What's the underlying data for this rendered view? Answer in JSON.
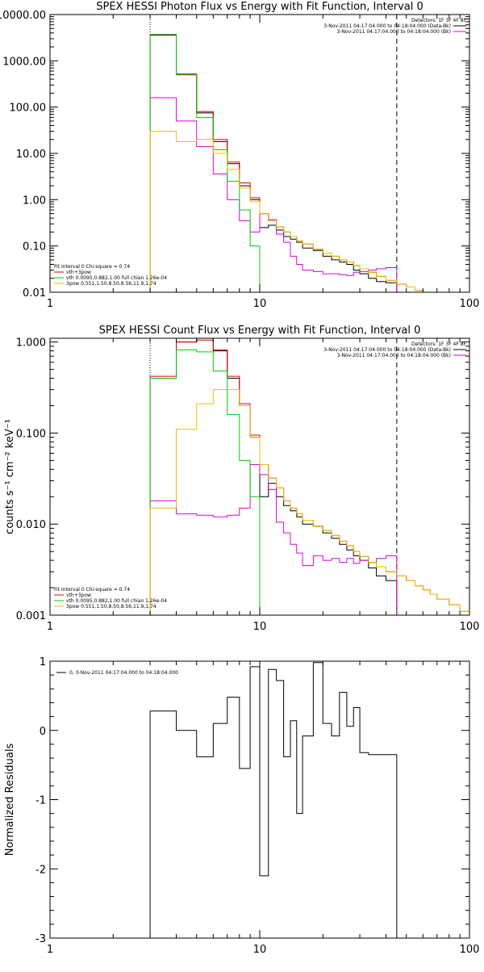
{
  "chart_data": [
    {
      "type": "line",
      "title": "SPEX HESSI Photon Flux vs Energy with Fit Function, Interval 0",
      "xscale": "log",
      "yscale": "log",
      "xlim": [
        1,
        100
      ],
      "ylim": [
        0.01,
        10000
      ],
      "x_tick_labels": [
        "1",
        "10",
        "100"
      ],
      "y_tick_labels": [
        "0.01",
        "0.10",
        "1.00",
        "10.00",
        "100.00",
        "1000.00",
        "10000.00"
      ],
      "vlines": [
        {
          "x": 3,
          "style": "dotted"
        },
        {
          "x": 45,
          "style": "dashed"
        }
      ],
      "legend_top_right": [
        "Detectors: 1F 3F 4F 8F",
        "3-Nov-2011 04:17:04.000 to 04:18:04.000 (Data-Bk)",
        "3-Nov-2011 04:17:04.000 to 04:18:04.000 (Bk)"
      ],
      "legend_bottom_left": [
        "Fit Interval  0    Chi-square = 0.74",
        "vth+3pow",
        "vth 0.0095,0.882,1.00  full chian 1.26e-04",
        "3pow 0.551,1.50,8.50,8.56,11.9,1.74"
      ],
      "edges": [
        3.0,
        4.0,
        5.0,
        6.0,
        7.0,
        8.0,
        9.0,
        10.0,
        11.0,
        12.0,
        13.0,
        14.0,
        15.0,
        16.0,
        18.0,
        20.0,
        22.0,
        24.0,
        26.0,
        28.0,
        30.0,
        33.0,
        36.0,
        40.0,
        45.0
      ],
      "model_edges": [
        3.0,
        4.0,
        5.0,
        6.0,
        7.0,
        8.0,
        9.0,
        10.0,
        11.0,
        12.0,
        13.0,
        14.0,
        15.0,
        16.0,
        18.0,
        20.0,
        22.0,
        24.0,
        26.0,
        28.0,
        30.0,
        33.0,
        36.0,
        40.0,
        45.0,
        50.0,
        55.0,
        60.0,
        65.0,
        70.0
      ],
      "series": [
        {
          "name": "3-Nov-2011 04:17:04.000 to 04:18:04.000 (Data-Bk)",
          "color": "#000000",
          "edges_key": "edges",
          "values": [
            3600,
            500,
            75,
            18,
            6.0,
            2.0,
            1.0,
            0.25,
            0.28,
            0.22,
            0.16,
            0.14,
            0.12,
            0.09,
            0.08,
            0.06,
            0.05,
            0.045,
            0.04,
            0.03,
            0.025,
            0.02,
            0.017,
            0.016
          ]
        },
        {
          "name": "3-Nov-2011 04:17:04.000 to 04:18:04.000 (Bk)",
          "color": "#dd00dd",
          "edges_key": "edges",
          "values": [
            160,
            50,
            14,
            3.6,
            1.0,
            0.35,
            0.2,
            0.5,
            0.37,
            0.18,
            0.12,
            0.06,
            0.04,
            0.03,
            0.028,
            0.025,
            0.025,
            0.024,
            0.023,
            0.027,
            0.028,
            0.03,
            0.032,
            0.034
          ]
        },
        {
          "name": "vth+3pow",
          "color": "#dd0000",
          "edges_key": "model_edges",
          "values": [
            3700,
            520,
            80,
            20,
            6.5,
            2.3,
            1.1,
            0.5,
            0.35,
            0.26,
            0.2,
            0.16,
            0.13,
            0.11,
            0.085,
            0.07,
            0.06,
            0.05,
            0.045,
            0.038,
            0.032,
            0.027,
            0.022,
            0.018,
            0.015,
            0.013,
            0.011,
            0.0095,
            0.008
          ]
        },
        {
          "name": "vth",
          "color": "#00cc00",
          "edges_key": "model_edges",
          "values": [
            3700,
            500,
            60,
            12,
            2.5,
            0.6,
            0.1,
            0.0095,
            0.001
          ]
        },
        {
          "name": "3pow",
          "color": "#e8c000",
          "edges_key": "model_edges",
          "values": [
            30,
            18,
            20,
            10,
            4.5,
            1.8,
            0.9,
            0.5,
            0.35,
            0.26,
            0.2,
            0.16,
            0.13,
            0.11,
            0.085,
            0.07,
            0.06,
            0.05,
            0.045,
            0.038,
            0.032,
            0.027,
            0.022,
            0.018,
            0.015,
            0.013,
            0.011,
            0.0095,
            0.008
          ]
        }
      ]
    },
    {
      "type": "line",
      "title": "SPEX HESSI Count Flux vs Energy with Fit Function, Interval 0",
      "xscale": "log",
      "yscale": "log",
      "xlim": [
        1,
        100
      ],
      "ylim": [
        0.001,
        1.1
      ],
      "x_tick_labels": [
        "1",
        "10",
        "100"
      ],
      "y_tick_labels": [
        "0.001",
        "0.010",
        "0.100",
        "1.000"
      ],
      "ylabel": "counts s⁻¹ cm⁻² keV⁻¹",
      "vlines": [
        {
          "x": 3,
          "style": "dotted"
        },
        {
          "x": 45,
          "style": "dashed"
        }
      ],
      "legend_top_right": [
        "Detectors: 1F 3F 4F 8F",
        "3-Nov-2011 04:17:04.000 to 04:18:04.000 (Data-Bk)",
        "3-Nov-2011 04:17:04.000 to 04:18:04.000 (Bk)"
      ],
      "legend_bottom_left": [
        "Fit Interval  0    Chi-square = 0.74",
        "vth+3pow",
        "vth 0.0095,0.882,1.00  full chian 1.26e-04",
        "3pow 0.551,1.50,8.50,8.56,11.9,1.74"
      ],
      "edges": [
        3.0,
        4.0,
        5.0,
        6.0,
        7.0,
        8.0,
        9.0,
        10.0,
        11.0,
        12.0,
        13.0,
        14.0,
        15.0,
        16.0,
        18.0,
        20.0,
        22.0,
        24.0,
        26.0,
        28.0,
        30.0,
        33.0,
        36.0,
        40.0,
        45.0
      ],
      "model_edges": [
        3.0,
        4.0,
        5.0,
        6.0,
        7.0,
        8.0,
        9.0,
        10.0,
        11.0,
        12.0,
        13.0,
        14.0,
        15.0,
        16.0,
        18.0,
        20.0,
        22.0,
        24.0,
        26.0,
        28.0,
        30.0,
        33.0,
        36.0,
        40.0,
        45.0,
        50.0,
        55.0,
        60.0,
        65.0,
        70.0,
        80.0,
        90.0,
        100.0
      ],
      "series": [
        {
          "name": "3-Nov-2011 04:17:04.000 to 04:18:04.000 (Data-Bk)",
          "color": "#000000",
          "edges_key": "edges",
          "values": [
            0.4,
            1.0,
            1.1,
            0.8,
            0.4,
            0.2,
            0.09,
            0.02,
            0.028,
            0.02,
            0.016,
            0.014,
            0.012,
            0.01,
            0.0095,
            0.008,
            0.007,
            0.006,
            0.0052,
            0.0045,
            0.004,
            0.0033,
            0.0027,
            0.0024
          ]
        },
        {
          "name": "3-Nov-2011 04:17:04.000 to 04:18:04.000 (Bk)",
          "color": "#dd00dd",
          "edges_key": "edges",
          "values": [
            0.018,
            0.013,
            0.0125,
            0.012,
            0.0125,
            0.015,
            0.045,
            0.035,
            0.024,
            0.0105,
            0.008,
            0.006,
            0.0048,
            0.0035,
            0.0045,
            0.004,
            0.0042,
            0.0038,
            0.0042,
            0.0037,
            0.004,
            0.0038,
            0.0042,
            0.0045
          ]
        },
        {
          "name": "vth+3pow",
          "color": "#dd0000",
          "edges_key": "model_edges",
          "values": [
            0.42,
            1.0,
            1.05,
            0.82,
            0.42,
            0.21,
            0.095,
            0.045,
            0.032,
            0.025,
            0.018,
            0.015,
            0.013,
            0.011,
            0.0095,
            0.0085,
            0.0075,
            0.0065,
            0.0058,
            0.005,
            0.0044,
            0.0038,
            0.0034,
            0.003,
            0.0027,
            0.0024,
            0.0021,
            0.0019,
            0.0017,
            0.0015,
            0.0013,
            0.0011
          ]
        },
        {
          "name": "vth",
          "color": "#00cc00",
          "edges_key": "model_edges",
          "values": [
            0.4,
            0.82,
            0.78,
            0.48,
            0.16,
            0.05,
            0.02,
            0.001
          ]
        },
        {
          "name": "3pow",
          "color": "#e8c000",
          "edges_key": "model_edges",
          "values": [
            0.015,
            0.11,
            0.21,
            0.3,
            0.3,
            0.2,
            0.09,
            0.045,
            0.032,
            0.025,
            0.018,
            0.015,
            0.013,
            0.011,
            0.0095,
            0.0085,
            0.0075,
            0.0065,
            0.0058,
            0.005,
            0.0044,
            0.0038,
            0.0034,
            0.003,
            0.0027,
            0.0024,
            0.0021,
            0.0019,
            0.0017,
            0.0015,
            0.0013,
            0.0011
          ]
        }
      ]
    },
    {
      "type": "line",
      "title": "",
      "xscale": "log",
      "yscale": "linear",
      "xlim": [
        1,
        100
      ],
      "ylim": [
        -3,
        1
      ],
      "x_tick_labels": [
        "1",
        "10",
        "100"
      ],
      "y_tick_labels": [
        "-3",
        "-2",
        "-1",
        "0",
        "1"
      ],
      "ylabel": "Normalized Residuals",
      "legend_top_left": [
        "0,  3-Nov-2011 04:17:04.000 to 04:18:04.000"
      ],
      "edges": [
        3.0,
        4.0,
        5.0,
        6.0,
        7.0,
        8.0,
        9.0,
        10.0,
        11.0,
        12.0,
        13.0,
        14.0,
        15.0,
        16.0,
        18.0,
        20.0,
        22.0,
        24.0,
        26.0,
        28.0,
        30.0,
        33.0,
        36.0,
        40.0,
        45.0
      ],
      "series": [
        {
          "name": "0,  3-Nov-2011 04:17:04.000 to 04:18:04.000",
          "color": "#000000",
          "edges_key": "edges",
          "values": [
            0.28,
            0.0,
            -0.38,
            0.1,
            0.48,
            -0.55,
            0.92,
            -2.1,
            0.88,
            0.72,
            -0.38,
            0.14,
            -1.2,
            -0.08,
            0.98,
            0.1,
            -0.08,
            0.55,
            0.06,
            0.33,
            -0.32,
            -0.35,
            -0.35,
            -0.35
          ]
        }
      ]
    }
  ]
}
